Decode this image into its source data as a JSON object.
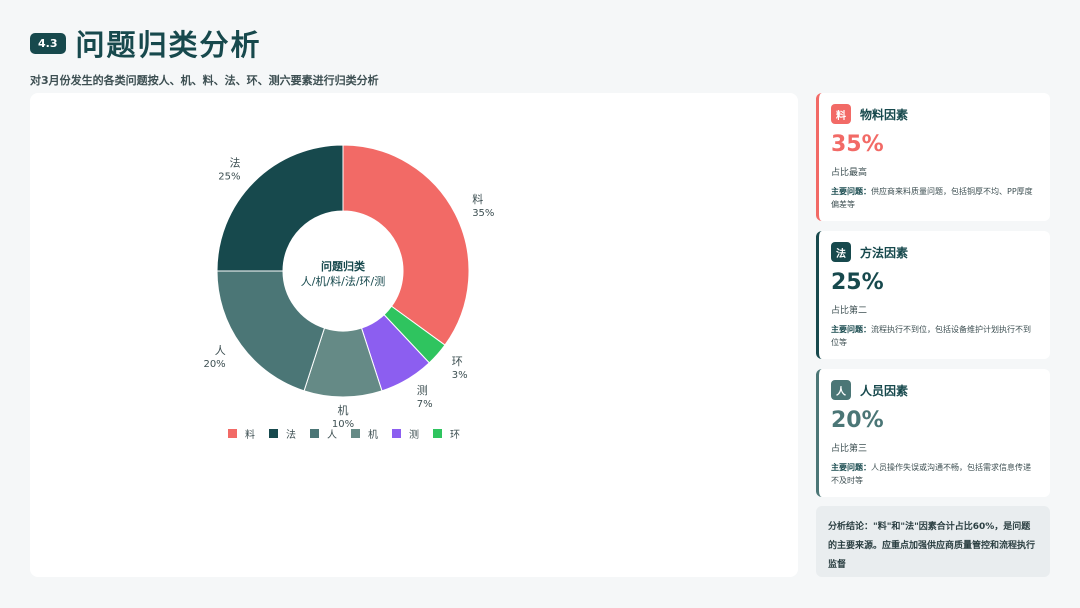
{
  "header": {
    "badge": "4.3",
    "title": "问题归类分析",
    "subtitle": "对3月份发生的各类问题按人、机、料、法、环、测六要素进行归类分析"
  },
  "chart_data": {
    "type": "pie",
    "center_title": "问题归类",
    "center_subtitle": "人/机/料/法/环/测",
    "slices": [
      {
        "label": "料",
        "value": 35,
        "display": "35%",
        "color": "#f26a66"
      },
      {
        "label": "环",
        "value": 3,
        "display": "3%",
        "color": "#2fc45f"
      },
      {
        "label": "测",
        "value": 7,
        "display": "7%",
        "color": "#8c5ef0"
      },
      {
        "label": "机",
        "value": 10,
        "display": "10%",
        "color": "#658a86"
      },
      {
        "label": "人",
        "value": 20,
        "display": "20%",
        "color": "#4b7676"
      },
      {
        "label": "法",
        "value": 25,
        "display": "25%",
        "color": "#17494d"
      }
    ],
    "legend": [
      "料",
      "法",
      "人",
      "机",
      "测",
      "环"
    ],
    "legend_position": "bottom"
  },
  "cards": [
    {
      "icon": "料",
      "title": "物料因素",
      "percent": "35%",
      "rank": "占比最高",
      "problem_label": "主要问题：",
      "problem": "供应商来料质量问题，包括铜厚不均、PP厚度偏差等",
      "color": "#f26a66"
    },
    {
      "icon": "法",
      "title": "方法因素",
      "percent": "25%",
      "rank": "占比第二",
      "problem_label": "主要问题：",
      "problem": "流程执行不到位，包括设备维护计划执行不到位等",
      "color": "#17494d"
    },
    {
      "icon": "人",
      "title": "人员因素",
      "percent": "20%",
      "rank": "占比第三",
      "problem_label": "主要问题：",
      "problem": "人员操作失误或沟通不畅，包括需求信息传递不及时等",
      "color": "#4b7676"
    }
  ],
  "conclusion": "分析结论：\"料\"和\"法\"因素合计占比60%，是问题的主要来源。应重点加强供应商质量管控和流程执行监督"
}
